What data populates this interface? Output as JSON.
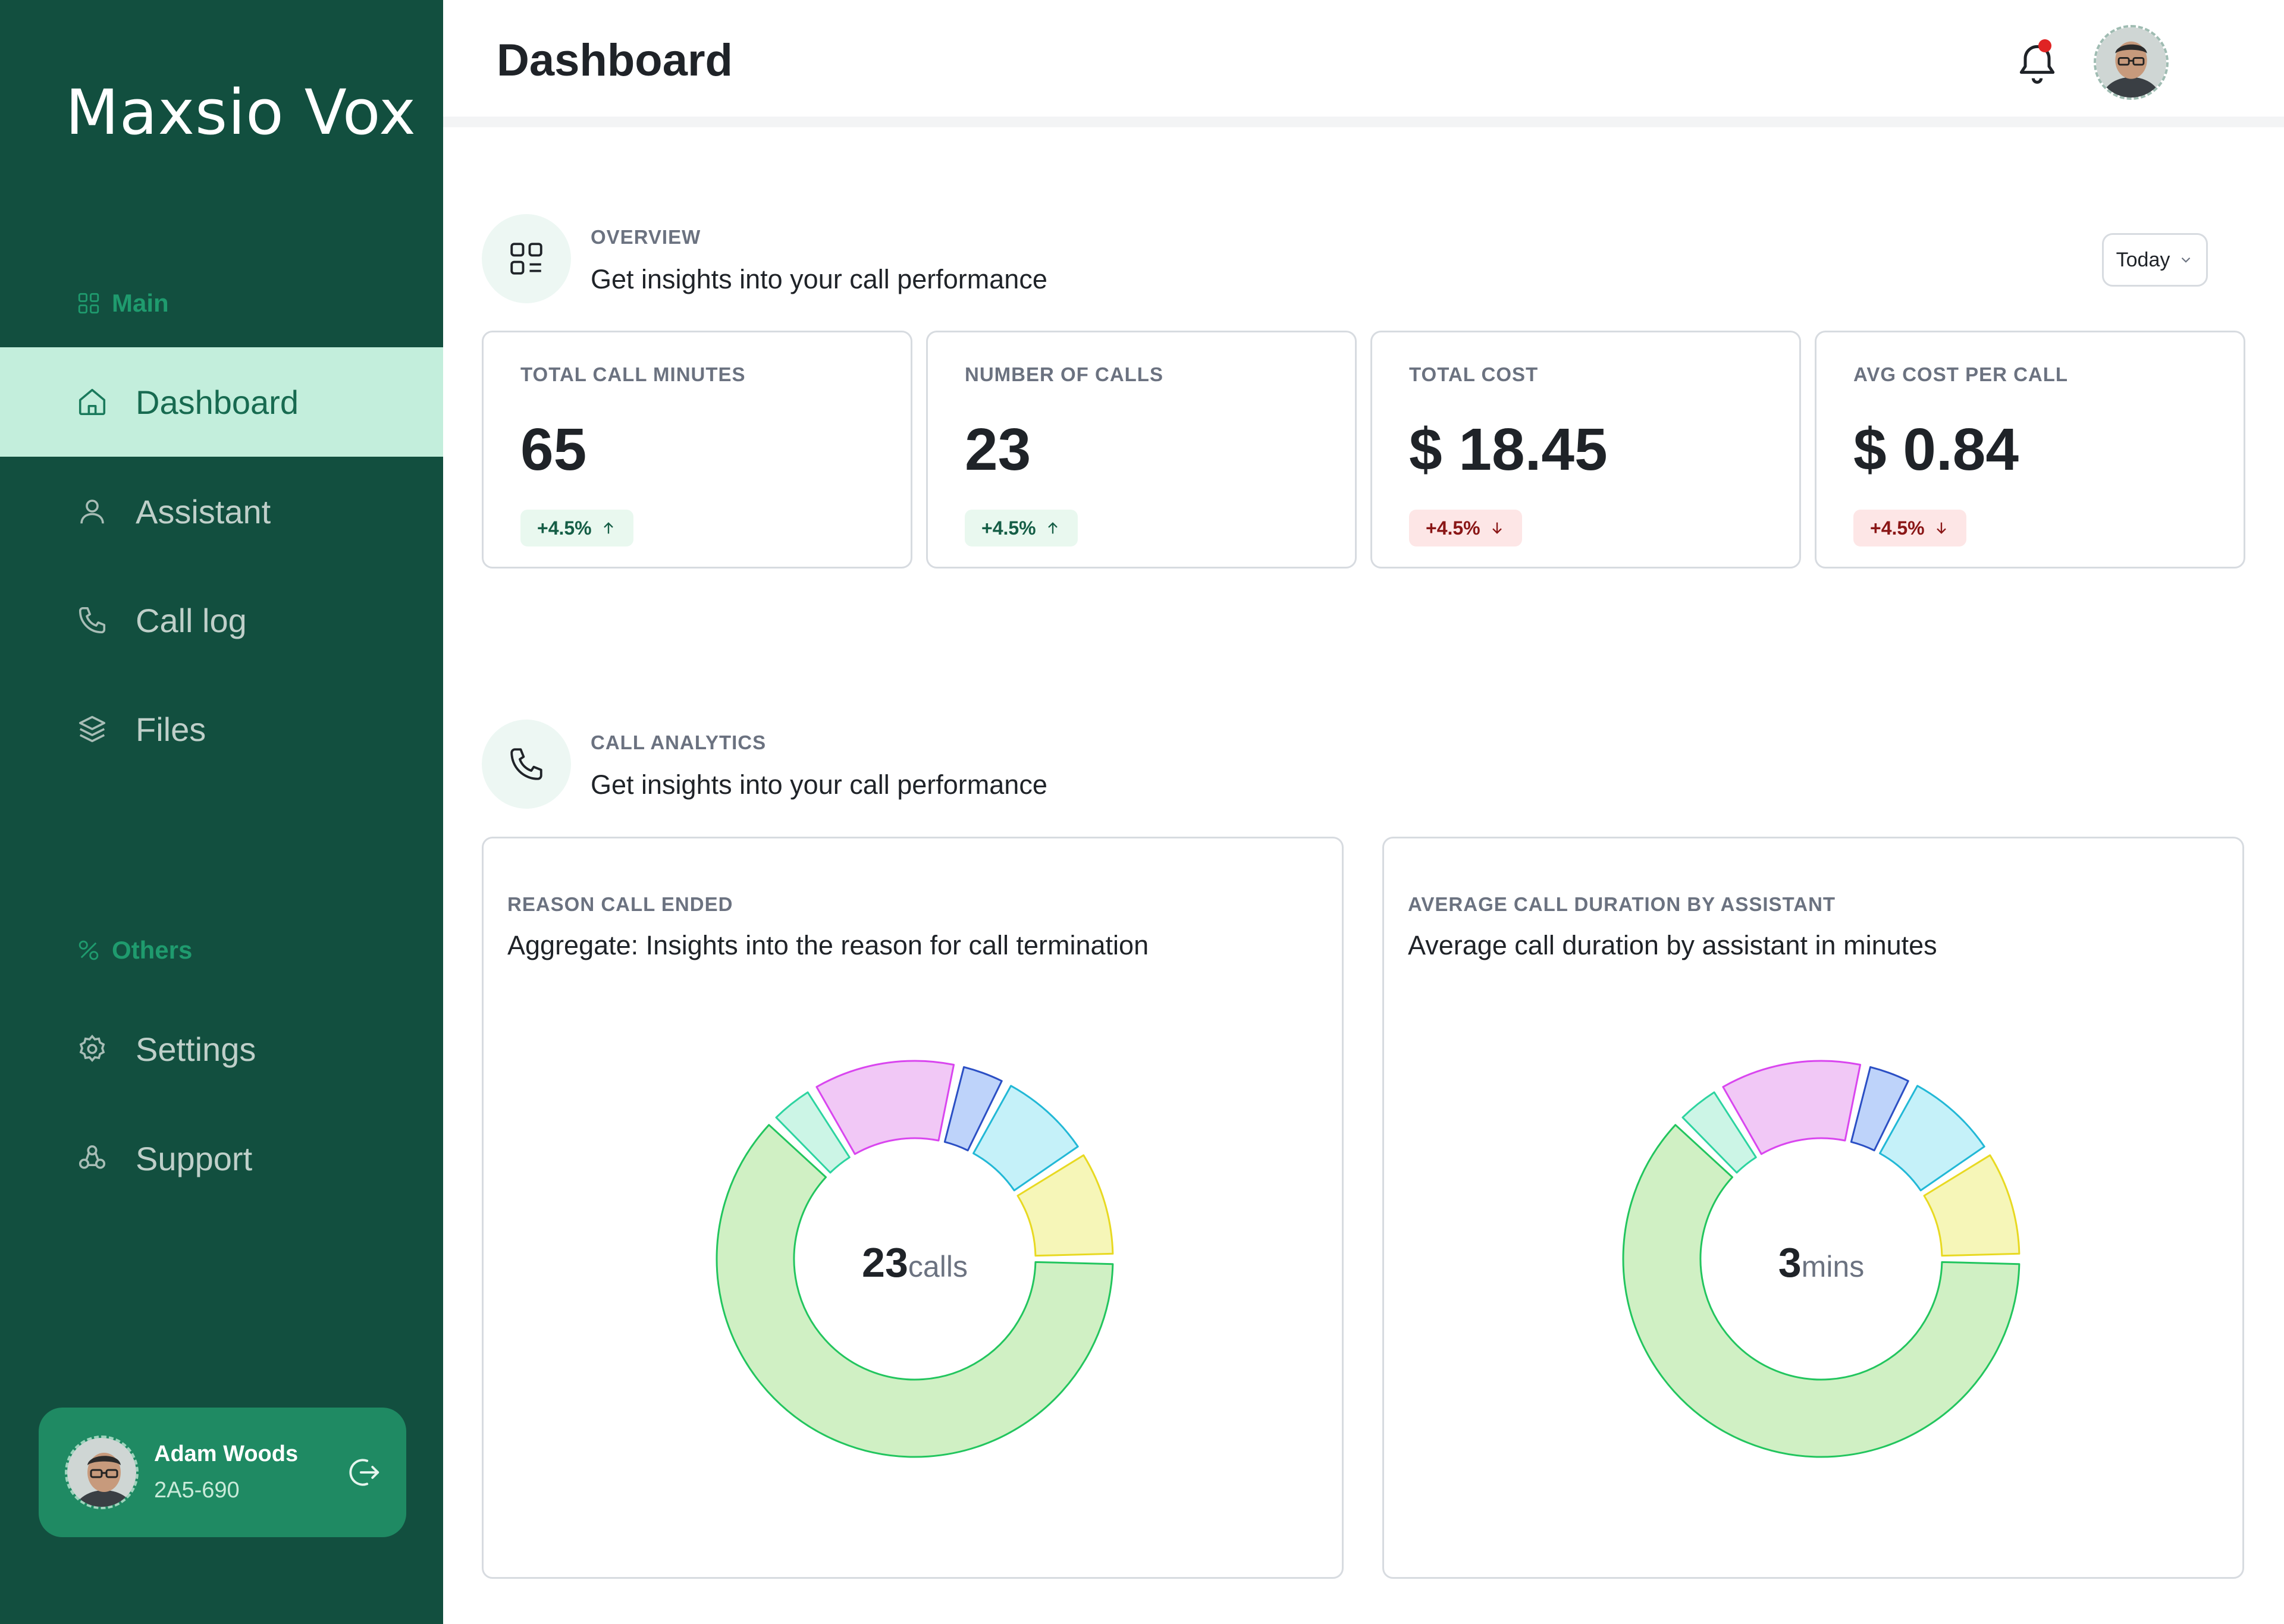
{
  "brand": "Maxsio Vox",
  "sidebar": {
    "main_label": "Main",
    "others_label": "Others",
    "items": [
      {
        "label": "Dashboard",
        "icon": "home-icon"
      },
      {
        "label": "Assistant",
        "icon": "user-icon"
      },
      {
        "label": "Call log",
        "icon": "phone-icon"
      },
      {
        "label": "Files",
        "icon": "layers-icon"
      }
    ],
    "other_items": [
      {
        "label": "Settings",
        "icon": "gear-icon"
      },
      {
        "label": "Support",
        "icon": "support-icon"
      }
    ],
    "user": {
      "name": "Adam Woods",
      "id": "2A5-690"
    }
  },
  "header": {
    "title": "Dashboard"
  },
  "overview": {
    "kicker": "OVERVIEW",
    "subtitle": "Get insights into your call performance",
    "range": "Today",
    "stats": [
      {
        "label": "TOTAL CALL MINUTES",
        "value": "65",
        "change": "+4.5%",
        "direction": "up"
      },
      {
        "label": "NUMBER OF CALLS",
        "value": "23",
        "change": "+4.5%",
        "direction": "up"
      },
      {
        "label": "TOTAL COST",
        "value": "$ 18.45",
        "change": "+4.5%",
        "direction": "down"
      },
      {
        "label": "AVG COST PER CALL",
        "value": "$ 0.84",
        "change": "+4.5%",
        "direction": "down"
      }
    ]
  },
  "analytics": {
    "kicker": "CALL ANALYTICS",
    "subtitle": "Get insights into your call performance",
    "charts": [
      {
        "kicker": "REASON CALL ENDED",
        "subtitle": "Aggregate: Insights into the reason for call termination",
        "center_value": "23",
        "center_unit": "calls"
      },
      {
        "kicker": "AVERAGE CALL DURATION BY ASSISTANT",
        "subtitle": "Average call duration by assistant in minutes",
        "center_value": "3",
        "center_unit": "mins"
      }
    ]
  },
  "colors": {
    "sidebar_bg": "#124f3f",
    "accent": "#1f8a63",
    "active_bg": "#c3eedc",
    "up_badge": "#e9f8ef",
    "down_badge": "#fde6e6"
  },
  "chart_data": [
    {
      "type": "pie",
      "variant": "donut",
      "series": [
        {
          "values": [
            61,
            4,
            12,
            4,
            8,
            9
          ]
        }
      ],
      "colors": [
        "#d0f0c4",
        "#ccf5e6",
        "#f1c8f6",
        "#bed3fa",
        "#c5f1f9",
        "#f6f6b8"
      ],
      "strokes": [
        "#22c55e",
        "#2dd4a0",
        "#d946ef",
        "#2b4fc4",
        "#22b8d6",
        "#e8d922"
      ]
    },
    {
      "type": "pie",
      "variant": "donut",
      "series": [
        {
          "values": [
            61,
            4,
            12,
            4,
            8,
            9
          ]
        }
      ],
      "colors": [
        "#d0f0c4",
        "#ccf5e6",
        "#f1c8f6",
        "#bed3fa",
        "#c5f1f9",
        "#f6f6b8"
      ],
      "strokes": [
        "#22c55e",
        "#2dd4a0",
        "#d946ef",
        "#2b4fc4",
        "#22b8d6",
        "#e8d922"
      ]
    }
  ]
}
